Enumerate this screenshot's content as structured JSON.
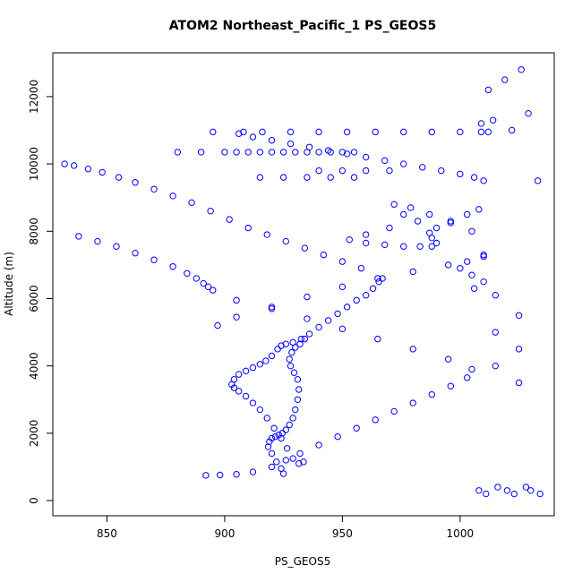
{
  "chart_data": {
    "type": "scatter",
    "title": "ATOM2 Northeast_Pacific_1 PS_GEOS5",
    "xlabel": "PS_GEOS5",
    "ylabel": "Altitude (m)",
    "xlim": [
      827,
      1040
    ],
    "ylim": [
      -450,
      13300
    ],
    "xticks": [
      850,
      900,
      950,
      1000
    ],
    "yticks": [
      0,
      2000,
      4000,
      6000,
      8000,
      10000,
      12000
    ],
    "grid": false,
    "marker": "open-circle",
    "color": "#0000ff",
    "x": [
      925.0,
      924.0,
      922.0,
      920.0,
      918.5,
      919.0,
      920.0,
      921.5,
      923.0,
      924.5,
      926.0,
      927.5,
      929.0,
      930.0,
      931.0,
      931.5,
      931.0,
      929.5,
      928.0,
      927.5,
      928.5,
      930.0,
      932.0,
      934.0,
      933.5,
      931.5,
      929.0,
      926.5,
      924.0,
      921.0,
      918.0,
      915.0,
      912.0,
      909.0,
      906.0,
      904.0,
      903.0,
      904.0,
      906.0,
      909.0,
      912.0,
      915.0,
      917.5,
      920.0,
      922.5,
      924.0,
      926.0,
      929.0,
      932.5,
      936.0,
      940.0,
      944.0,
      948.0,
      952.0,
      956.0,
      960.0,
      963.0,
      965.5,
      967.0,
      958.0,
      950.0,
      942.0,
      934.0,
      926.0,
      918.0,
      910.0,
      902.0,
      894.0,
      886.0,
      878.0,
      870.0,
      862.0,
      855.0,
      848.0,
      842.0,
      836.0,
      832.0,
      838.0,
      846.0,
      854.0,
      862.0,
      870.0,
      878.0,
      884.0,
      888.0,
      891.0,
      893.0,
      895.0,
      905.0,
      920.0,
      935.0,
      950.0,
      965.0,
      980.0,
      995.0,
      1005.0,
      1003.0,
      996.0,
      988.0,
      980.0,
      972.0,
      964.0,
      956.0,
      948.0,
      940.0,
      932.0,
      926.0,
      920.0,
      912.0,
      905.0,
      898.0,
      892.0,
      897.0,
      905.0,
      920.0,
      935.0,
      950.0,
      965.0,
      980.0,
      995.0,
      1010.0,
      1005.0,
      996.0,
      987.0,
      979.0,
      972.0,
      976.0,
      982.0,
      970.0,
      960.0,
      953.0,
      960.0,
      968.0,
      976.0,
      983.0,
      988.0,
      990.0,
      988.0,
      987.0,
      990.0,
      996.0,
      1003.0,
      1008.0,
      1010.0,
      1006.0,
      1000.0,
      992.0,
      984.0,
      976.0,
      968.0,
      960.0,
      952.0,
      944.0,
      936.0,
      928.0,
      920.0,
      912.0,
      906.0,
      908.0,
      916.0,
      928.0,
      940.0,
      952.0,
      964.0,
      976.0,
      988.0,
      1000.0,
      1009.0,
      1012.0,
      895.0,
      905.0,
      915.0,
      925.0,
      935.0,
      945.0,
      955.0,
      880.0,
      890.0,
      900.0,
      910.0,
      920.0,
      930.0,
      940.0,
      950.0,
      915.0,
      925.0,
      935.0,
      945.0,
      955.0,
      940.0,
      950.0,
      960.0,
      970.0,
      1009.0,
      1008.0,
      1012.0,
      1011.0,
      1014.0,
      1016.0,
      1019.0,
      1020.0,
      1022.0,
      1023.0,
      1026.0,
      1028.0,
      1029.0,
      1030.0,
      1033.0,
      1034.0,
      1010.0,
      1005.0,
      1000.0,
      1003.0,
      1010.0,
      1006.0,
      1015.0,
      1025.0,
      1015.0,
      1025.0,
      1015.0,
      1025.0
    ],
    "y": [
      800,
      950,
      1150,
      1400,
      1600,
      1750,
      1850,
      1900,
      1950,
      2000,
      2100,
      2250,
      2450,
      2700,
      3000,
      3300,
      3600,
      3800,
      4000,
      4200,
      4400,
      4550,
      4650,
      4800,
      1150,
      1100,
      1250,
      1550,
      1850,
      2150,
      2450,
      2700,
      2900,
      3100,
      3250,
      3350,
      3450,
      3600,
      3750,
      3850,
      3950,
      4050,
      4150,
      4300,
      4500,
      4600,
      4650,
      4700,
      4800,
      4950,
      5150,
      5350,
      5550,
      5750,
      5950,
      6100,
      6300,
      6500,
      6600,
      6900,
      7100,
      7300,
      7500,
      7700,
      7900,
      8100,
      8350,
      8600,
      8850,
      9050,
      9250,
      9450,
      9600,
      9750,
      9850,
      9950,
      10000,
      7850,
      7700,
      7550,
      7350,
      7150,
      6950,
      6750,
      6600,
      6450,
      6350,
      6250,
      5950,
      5700,
      5400,
      5100,
      4800,
      4500,
      4200,
      3900,
      3650,
      3400,
      3150,
      2900,
      2650,
      2400,
      2150,
      1900,
      1650,
      1400,
      1200,
      1000,
      850,
      780,
      760,
      750,
      5200,
      5450,
      5750,
      6050,
      6350,
      6600,
      6800,
      7000,
      7250,
      8000,
      8250,
      8500,
      8700,
      8800,
      8500,
      8300,
      8100,
      7900,
      7750,
      7650,
      7600,
      7550,
      7550,
      7550,
      7650,
      7800,
      7950,
      8100,
      8300,
      8500,
      8650,
      9500,
      9600,
      9700,
      9800,
      9900,
      10000,
      10100,
      10200,
      10300,
      10400,
      10500,
      10600,
      10700,
      10800,
      10900,
      10950,
      10950,
      10950,
      10950,
      10950,
      10950,
      10950,
      10950,
      10950,
      10950,
      10950,
      10950,
      10350,
      10350,
      10350,
      10350,
      10350,
      10350,
      10350,
      10350,
      10350,
      10350,
      10350,
      10350,
      10350,
      10350,
      9600,
      9600,
      9600,
      9600,
      9600,
      9800,
      9800,
      9800,
      9800,
      11200,
      300,
      12200,
      200,
      11300,
      400,
      12500,
      300,
      11000,
      200,
      12800,
      400,
      11500,
      300,
      9500,
      200,
      6500,
      6700,
      6900,
      7100,
      7300,
      6300,
      6100,
      5500,
      5000,
      4500,
      4000,
      3500
    ]
  }
}
